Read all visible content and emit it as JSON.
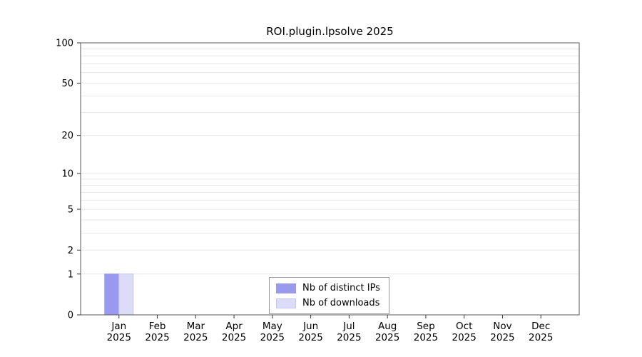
{
  "chart_data": {
    "type": "bar",
    "title": "ROI.plugin.lpsolve 2025",
    "year_label": "2025",
    "categories": [
      "Jan",
      "Feb",
      "Mar",
      "Apr",
      "May",
      "Jun",
      "Jul",
      "Aug",
      "Sep",
      "Oct",
      "Nov",
      "Dec"
    ],
    "series": [
      {
        "name": "Nb of distinct IPs",
        "color": "#9999ee",
        "edge": "#9999ee",
        "values": [
          1,
          0,
          0,
          0,
          0,
          0,
          0,
          0,
          0,
          0,
          0,
          0
        ]
      },
      {
        "name": "Nb of downloads",
        "color": "#dcdcf8",
        "edge": "#c6c6f0",
        "values": [
          1,
          0,
          0,
          0,
          0,
          0,
          0,
          0,
          0,
          0,
          0,
          0
        ]
      }
    ],
    "yscale": "log1p",
    "ylim": [
      0,
      100
    ],
    "yticks": [
      0,
      1,
      2,
      5,
      10,
      20,
      50,
      100
    ],
    "gridlines": [
      1,
      2,
      3,
      4,
      5,
      6,
      7,
      8,
      9,
      10,
      20,
      30,
      40,
      50,
      60,
      70,
      80,
      90,
      100
    ],
    "grid": "horizontal",
    "legend_position": "bottom-center",
    "xlabel": "",
    "ylabel": "",
    "colors": {
      "grid": "#e8e8e8",
      "axis_box": "#5a5a5a",
      "tick": "#333333",
      "text": "#000000",
      "background": "#ffffff"
    }
  }
}
